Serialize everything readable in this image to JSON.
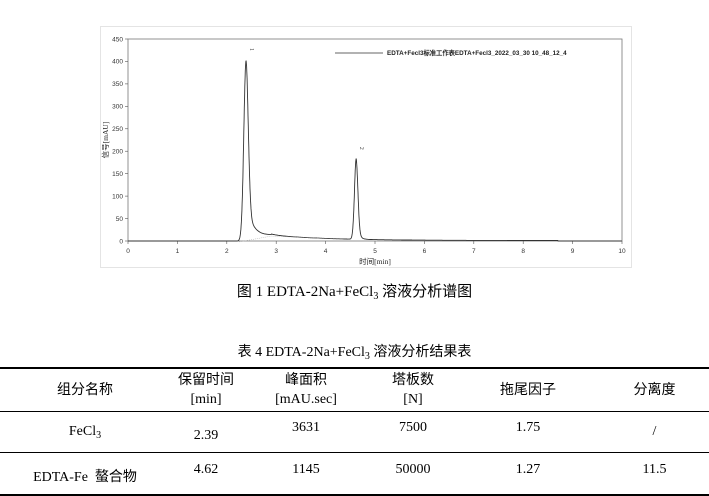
{
  "figure": {
    "caption_prefix": "图 1 EDTA-2Na+FeCl",
    "caption_sub": "3",
    "caption_suffix": " 溶液分析谱图"
  },
  "chart_data": {
    "type": "line",
    "xlabel": "时间[min]",
    "ylabel": "信号[mAU]",
    "xlim": [
      0,
      10
    ],
    "ylim": [
      0,
      450
    ],
    "xticks": [
      0,
      1,
      2,
      3,
      4,
      5,
      6,
      7,
      8,
      9,
      10
    ],
    "yticks": [
      0,
      50,
      100,
      150,
      200,
      250,
      300,
      350,
      400,
      450
    ],
    "grid": false,
    "legend": {
      "position": "top-right",
      "entries": [
        "EDTA+Fecl3标准工作表EDTA+Fecl3_2022_03_30 10_48_12_4"
      ]
    },
    "series_color": "#333333",
    "peaks": [
      {
        "label": "1",
        "retention_time": 2.39,
        "height": 400
      },
      {
        "label": "2",
        "retention_time": 4.62,
        "height": 180
      }
    ]
  },
  "table": {
    "title_prefix": "表 4 EDTA-2Na+FeCl",
    "title_sub": "3",
    "title_suffix": " 溶液分析结果表",
    "headers": [
      {
        "line1": "组分名称",
        "line2": ""
      },
      {
        "line1": "保留时间",
        "line2": "[min]"
      },
      {
        "line1": "峰面积",
        "line2": "[mAU.sec]"
      },
      {
        "line1": "塔板数",
        "line2": "[N]"
      },
      {
        "line1": "拖尾因子",
        "line2": ""
      },
      {
        "line1": "分离度",
        "line2": ""
      }
    ],
    "rows": [
      {
        "name": "FeCl",
        "name_sub": "3",
        "rt": "2.39",
        "area": "3631",
        "plates": "7500",
        "tailing": "1.75",
        "resolution": "/"
      },
      {
        "name": "EDTA-Fe  螯合物",
        "name_sub": "",
        "rt": "4.62",
        "area": "1145",
        "plates": "50000",
        "tailing": "1.27",
        "resolution": "11.5"
      }
    ]
  }
}
